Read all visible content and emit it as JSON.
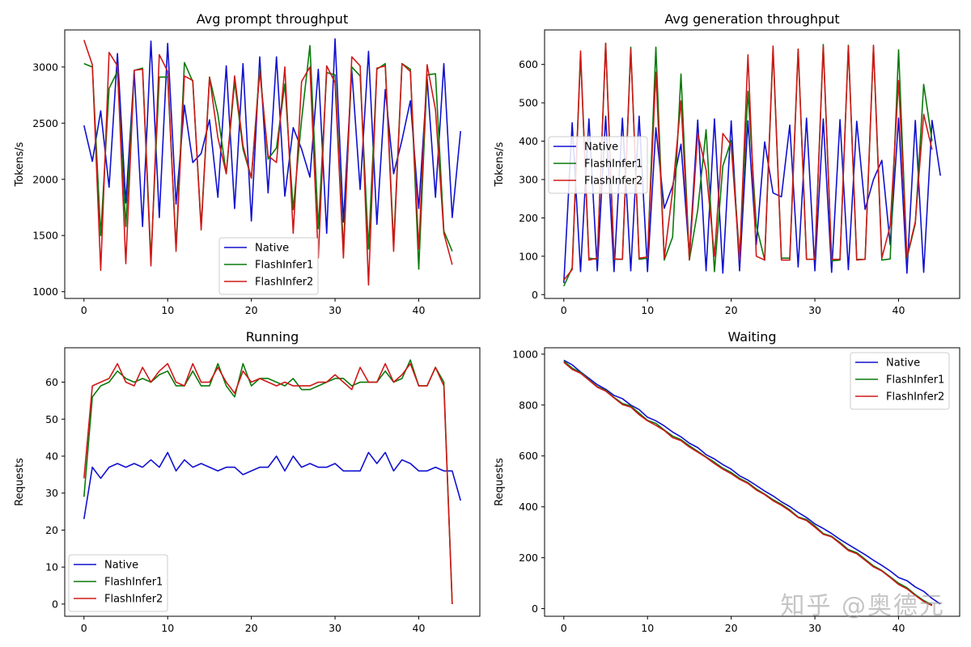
{
  "colors": {
    "Native": "#1010d0",
    "FlashInfer1": "#0a7a0a",
    "FlashInfer2": "#d01818"
  },
  "watermark": "知乎 @奥德元",
  "chart_data": [
    {
      "type": "line",
      "title": "Avg prompt throughput",
      "xlabel": "",
      "ylabel": "Tokens/s",
      "xlim": [
        -2.3,
        47.3
      ],
      "ylim": [
        940,
        3330
      ],
      "xticks": [
        0,
        10,
        20,
        30,
        40
      ],
      "yticks": [
        1000,
        1500,
        2000,
        2500,
        3000
      ],
      "legend": "lower-center",
      "series": [
        {
          "name": "Native",
          "values": [
            2480,
            2160,
            2610,
            1930,
            3120,
            1790,
            2960,
            1580,
            3230,
            1660,
            3210,
            1780,
            2660,
            2150,
            2230,
            2530,
            1840,
            3010,
            1740,
            3030,
            1630,
            3090,
            1880,
            3090,
            1850,
            2460,
            2270,
            2020,
            2980,
            1520,
            3250,
            1620,
            2970,
            1910,
            3140,
            1600,
            2800,
            2050,
            2350,
            2700,
            1740,
            2900,
            1840,
            3030,
            1660,
            2430
          ]
        },
        {
          "name": "FlashInfer1",
          "values": [
            3030,
            3000,
            1500,
            2810,
            2960,
            1580,
            2970,
            2990,
            1290,
            2910,
            2910,
            1390,
            3040,
            2870,
            1580,
            2910,
            2580,
            2050,
            2870,
            2270,
            2010,
            2990,
            2180,
            2280,
            2850,
            1730,
            2530,
            3190,
            1560,
            2950,
            2930,
            1380,
            3000,
            2920,
            1380,
            2980,
            3030,
            1420,
            3030,
            2980,
            1200,
            2930,
            2940,
            1540,
            1360
          ]
        },
        {
          "name": "FlashInfer2",
          "values": [
            3240,
            3020,
            1190,
            3130,
            3010,
            1250,
            2970,
            2980,
            1230,
            3110,
            2960,
            1360,
            2920,
            2880,
            1550,
            2910,
            2370,
            2050,
            2920,
            2300,
            2010,
            2960,
            2210,
            2150,
            3000,
            1520,
            2870,
            3000,
            1300,
            3010,
            2860,
            1300,
            3090,
            3010,
            1060,
            2990,
            3010,
            1360,
            3030,
            2960,
            1380,
            3020,
            2620,
            1520,
            1240
          ]
        }
      ]
    },
    {
      "type": "line",
      "title": "Avg generation throughput",
      "xlabel": "",
      "ylabel": "Tokens/s",
      "xlim": [
        -2.3,
        47.3
      ],
      "ylim": [
        -10,
        690
      ],
      "xticks": [
        0,
        10,
        20,
        30,
        40
      ],
      "yticks": [
        0,
        100,
        200,
        300,
        400,
        500,
        600
      ],
      "legend": "center-left",
      "series": [
        {
          "name": "Native",
          "values": [
            30,
            448,
            60,
            458,
            62,
            465,
            60,
            460,
            62,
            465,
            60,
            435,
            225,
            283,
            392,
            102,
            455,
            62,
            458,
            56,
            453,
            62,
            453,
            130,
            398,
            265,
            255,
            442,
            72,
            460,
            62,
            458,
            58,
            456,
            65,
            452,
            222,
            300,
            350,
            130,
            460,
            56,
            454,
            58,
            454,
            310
          ]
        },
        {
          "name": "FlashInfer1",
          "values": [
            22,
            70,
            625,
            95,
            92,
            655,
            92,
            92,
            645,
            92,
            95,
            645,
            90,
            150,
            575,
            90,
            220,
            430,
            60,
            335,
            402,
            100,
            530,
            180,
            90,
            640,
            95,
            95,
            640,
            92,
            92,
            652,
            88,
            90,
            650,
            92,
            92,
            645,
            90,
            93,
            638,
            95,
            185,
            548,
            400
          ]
        },
        {
          "name": "FlashInfer2",
          "values": [
            38,
            65,
            635,
            90,
            95,
            655,
            93,
            92,
            640,
            95,
            98,
            580,
            95,
            270,
            505,
            92,
            420,
            325,
            100,
            420,
            390,
            90,
            625,
            100,
            90,
            648,
            90,
            90,
            640,
            92,
            92,
            648,
            92,
            92,
            648,
            90,
            92,
            650,
            95,
            180,
            558,
            98,
            190,
            470,
            378
          ]
        }
      ]
    },
    {
      "type": "line",
      "title": "Running",
      "xlabel": "",
      "ylabel": "Requests",
      "xlim": [
        -2.3,
        47.3
      ],
      "ylim": [
        -3.3,
        69.3
      ],
      "xticks": [
        0,
        10,
        20,
        30,
        40
      ],
      "yticks": [
        0,
        10,
        20,
        30,
        40,
        50,
        60
      ],
      "legend": "lower-left",
      "series": [
        {
          "name": "Native",
          "values": [
            23,
            37,
            34,
            37,
            38,
            37,
            38,
            37,
            39,
            37,
            41,
            36,
            39,
            37,
            38,
            37,
            36,
            37,
            37,
            35,
            36,
            37,
            37,
            40,
            36,
            40,
            37,
            38,
            37,
            37,
            38,
            36,
            36,
            36,
            41,
            38,
            41,
            36,
            39,
            38,
            36,
            36,
            37,
            36,
            36,
            28
          ]
        },
        {
          "name": "FlashInfer1",
          "values": [
            29,
            56,
            59,
            60,
            63,
            61,
            60,
            61,
            60,
            62,
            63,
            59,
            59,
            63,
            59,
            59,
            65,
            59,
            56,
            65,
            59,
            61,
            61,
            60,
            59,
            61,
            58,
            58,
            59,
            60,
            61,
            61,
            59,
            60,
            60,
            60,
            63,
            60,
            61,
            66,
            59,
            59,
            64,
            60,
            0
          ]
        },
        {
          "name": "FlashInfer2",
          "values": [
            34,
            59,
            60,
            61,
            65,
            60,
            59,
            64,
            60,
            63,
            65,
            60,
            59,
            65,
            60,
            60,
            64,
            60,
            57,
            63,
            60,
            61,
            60,
            59,
            60,
            59,
            59,
            59,
            60,
            60,
            62,
            60,
            58,
            64,
            60,
            60,
            65,
            60,
            62,
            65,
            59,
            59,
            64,
            59,
            0
          ]
        }
      ]
    },
    {
      "type": "line",
      "title": "Waiting",
      "xlabel": "",
      "ylabel": "Requests",
      "xlim": [
        -2.3,
        47.3
      ],
      "ylim": [
        -30,
        1025
      ],
      "xticks": [
        0,
        10,
        20,
        30,
        40
      ],
      "yticks": [
        0,
        200,
        400,
        600,
        800,
        1000
      ],
      "legend": "top-right",
      "series": [
        {
          "name": "Native",
          "values": [
            976,
            958,
            930,
            905,
            880,
            862,
            838,
            825,
            800,
            782,
            752,
            738,
            718,
            694,
            675,
            650,
            633,
            605,
            588,
            566,
            548,
            522,
            505,
            484,
            462,
            443,
            420,
            401,
            378,
            358,
            333,
            315,
            295,
            272,
            252,
            232,
            212,
            190,
            170,
            148,
            122,
            110,
            85,
            68,
            40,
            18
          ]
        },
        {
          "name": "FlashInfer1",
          "values": [
            972,
            945,
            928,
            900,
            872,
            858,
            830,
            806,
            796,
            768,
            740,
            728,
            702,
            678,
            664,
            640,
            618,
            596,
            575,
            552,
            535,
            512,
            495,
            470,
            450,
            428,
            410,
            388,
            360,
            350,
            325,
            295,
            284,
            260,
            232,
            220,
            194,
            168,
            150,
            125,
            100,
            82,
            55,
            32,
            15
          ]
        },
        {
          "name": "FlashInfer2",
          "values": [
            968,
            940,
            925,
            898,
            870,
            855,
            828,
            802,
            792,
            762,
            738,
            720,
            700,
            672,
            660,
            635,
            615,
            594,
            570,
            548,
            530,
            508,
            492,
            466,
            448,
            424,
            406,
            384,
            358,
            346,
            320,
            292,
            282,
            256,
            228,
            216,
            190,
            164,
            148,
            122,
            95,
            78,
            52,
            28,
            12
          ]
        }
      ]
    }
  ]
}
